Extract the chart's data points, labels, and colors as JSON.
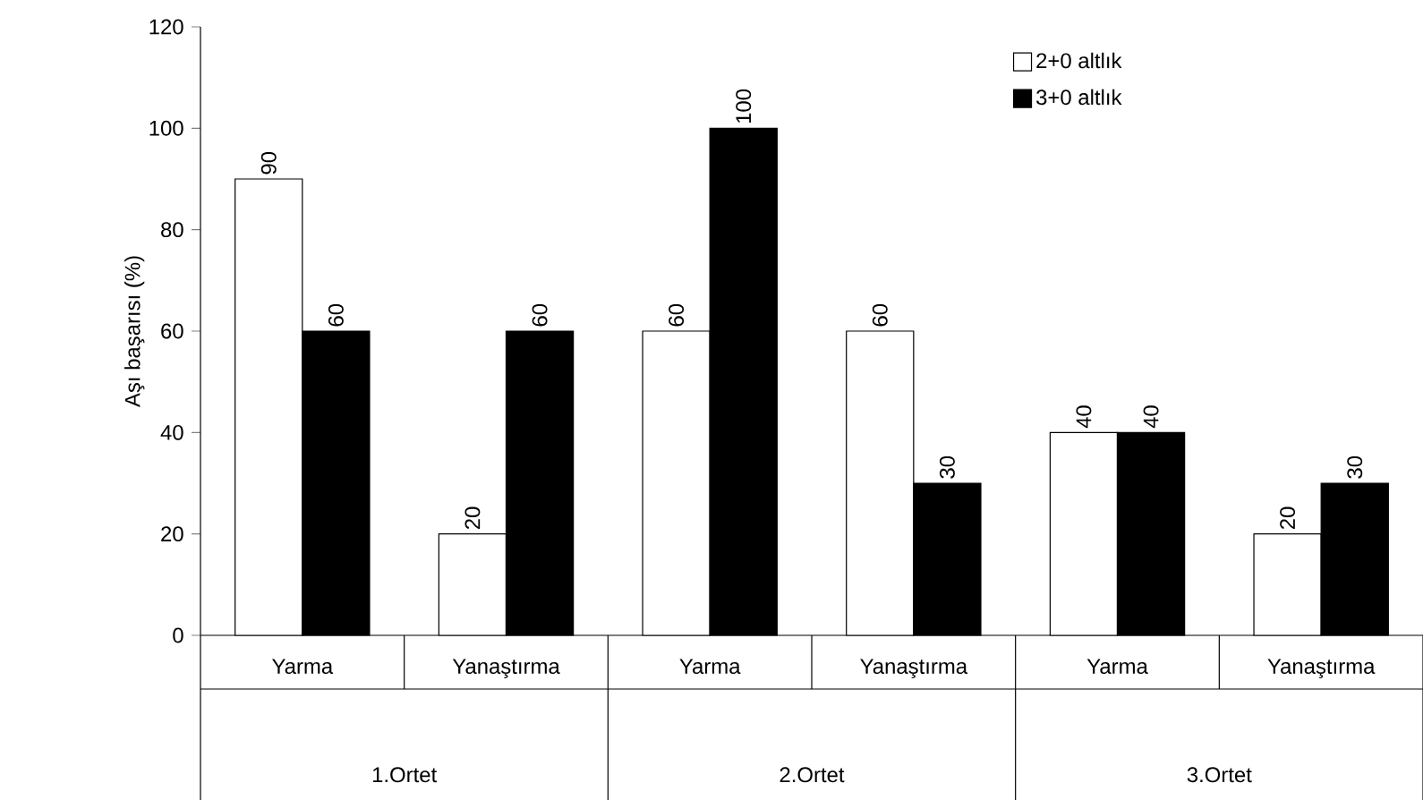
{
  "chart_data": {
    "type": "bar",
    "ylabel": "Aşı başarısı (%)",
    "categories": [
      "Yarma",
      "Yanaştırma",
      "Yarma",
      "Yanaştırma",
      "Yarma",
      "Yanaştırma"
    ],
    "series": [
      {
        "name": "2+0 altlık",
        "color": "#ffffff",
        "values": [
          90,
          20,
          60,
          60,
          40,
          20
        ]
      },
      {
        "name": "3+0 altlık",
        "color": "#000000",
        "values": [
          60,
          60,
          100,
          30,
          40,
          30
        ]
      }
    ],
    "annotations": [
      "1.Ortet",
      "2.Ortet",
      "3.Ortet"
    ],
    "ylim": [
      0,
      120
    ],
    "yticks": [
      0,
      20,
      40,
      60,
      80,
      100,
      120
    ],
    "data_labels": true,
    "legend": "top right",
    "grid": false
  }
}
